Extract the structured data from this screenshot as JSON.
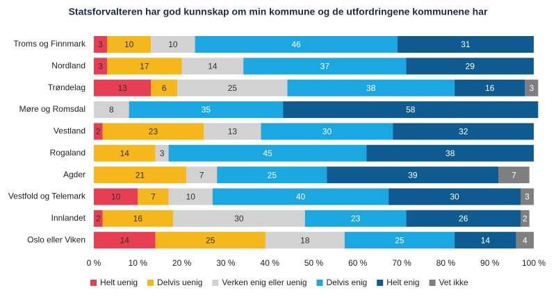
{
  "chart_data": {
    "type": "stacked-bar-horizontal",
    "title": "Statsforvalteren har god kunnskap om min kommune og de utfordringene kommunene har",
    "categories": [
      "Troms og Finnmark",
      "Nordland",
      "Trøndelag",
      "Møre og Romsdal",
      "Vestland",
      "Rogaland",
      "Agder",
      "Vestfold og Telemark",
      "Innlandet",
      "Oslo eller Viken"
    ],
    "series": [
      {
        "name": "Helt uenig",
        "color": "#e63e52",
        "values": [
          3,
          3,
          13,
          null,
          2,
          null,
          null,
          10,
          2,
          14
        ]
      },
      {
        "name": "Delvis uenig",
        "color": "#f5b71c",
        "values": [
          10,
          17,
          6,
          null,
          23,
          14,
          21,
          7,
          16,
          25
        ]
      },
      {
        "name": "Verken enig eller uenig",
        "color": "#d2d2d2",
        "values": [
          10,
          14,
          25,
          8,
          13,
          3,
          7,
          10,
          30,
          18
        ]
      },
      {
        "name": "Delvis enig",
        "color": "#1ba7e1",
        "values": [
          46,
          37,
          38,
          35,
          30,
          45,
          25,
          40,
          23,
          25
        ]
      },
      {
        "name": "Helt enig",
        "color": "#0e5b91",
        "values": [
          31,
          29,
          16,
          58,
          32,
          38,
          39,
          30,
          26,
          14
        ]
      },
      {
        "name": "Vet ikke",
        "color": "#7f7f7f",
        "values": [
          null,
          null,
          3,
          null,
          null,
          null,
          7,
          3,
          2,
          4
        ]
      }
    ],
    "xlim": [
      0,
      100
    ],
    "xticks": [
      {
        "value": 0,
        "label": "0 %"
      },
      {
        "value": 10,
        "label": "10 %"
      },
      {
        "value": 20,
        "label": "20 %"
      },
      {
        "value": 30,
        "label": "30 %"
      },
      {
        "value": 40,
        "label": "40 %"
      },
      {
        "value": 50,
        "label": "50 %"
      },
      {
        "value": 60,
        "label": "60 %"
      },
      {
        "value": 70,
        "label": "70 %"
      },
      {
        "value": 80,
        "label": "80 %"
      },
      {
        "value": 90,
        "label": "90 %"
      },
      {
        "value": 100,
        "label": "100 %"
      }
    ],
    "legend": "bottom"
  }
}
